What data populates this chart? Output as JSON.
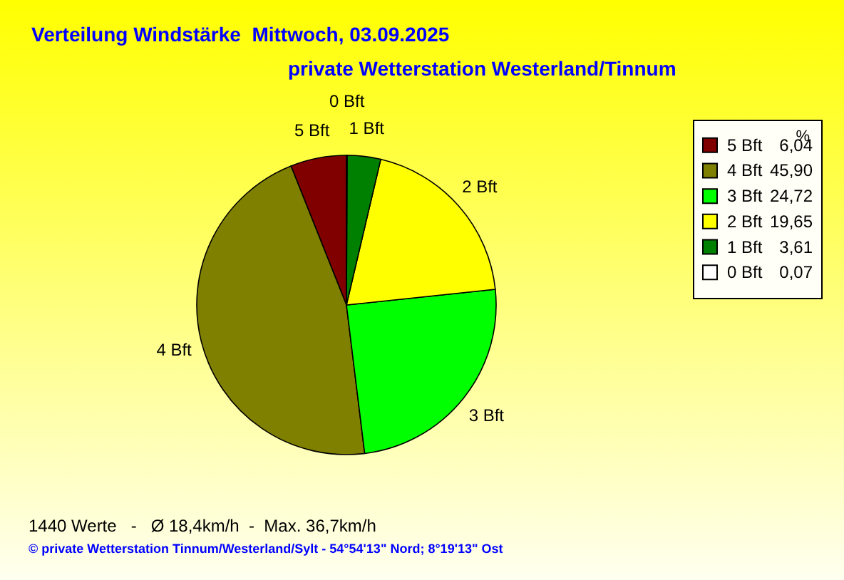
{
  "chart_data": {
    "type": "pie",
    "title": "Verteilung Windstärke  Mittwoch, 03.09.2025",
    "subtitle": "private Wetterstation Westerland/Tinnum",
    "categories": [
      "5 Bft",
      "4 Bft",
      "3 Bft",
      "2 Bft",
      "1 Bft",
      "0 Bft"
    ],
    "values": [
      6.04,
      45.9,
      24.72,
      19.65,
      3.61,
      0.07
    ],
    "value_labels": [
      "6,04",
      "45,90",
      "24,72",
      "19,65",
      "3,61",
      "0,07"
    ],
    "colors": [
      "#800000",
      "#808000",
      "#00ff00",
      "#ffff00",
      "#008000",
      "#ffffff"
    ],
    "legend": "right",
    "legend_title": "%",
    "annotations": [
      "1440 Werte   -   Ø 18,4km/h  -  Max. 36,7km/h",
      "© private Wetterstation Tinnum/Westerland/Sylt   -   54°54'13\" Nord; 8°19'13\" Ost"
    ]
  }
}
